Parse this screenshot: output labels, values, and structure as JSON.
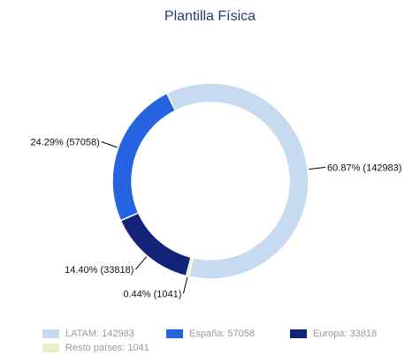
{
  "chart_data": {
    "type": "pie",
    "style": "donut",
    "title": "Plantilla Física",
    "slices": [
      {
        "name": "LATAM",
        "value": 142983,
        "percent": 60.87,
        "label": "60.87% (142983)",
        "legend": "LATAM: 142983",
        "color": "#c6dbf0"
      },
      {
        "name": "España",
        "value": 57058,
        "percent": 24.29,
        "label": "24.29% (57058)",
        "legend": "España: 57058",
        "color": "#2563e0"
      },
      {
        "name": "Europa",
        "value": 33818,
        "percent": 14.4,
        "label": "14.40% (33818)",
        "legend": "Europa: 33818",
        "color": "#13237a"
      },
      {
        "name": "Resto países",
        "value": 1041,
        "percent": 0.44,
        "label": "0.44% (1041)",
        "legend": "Resto países: 1041",
        "color": "#e9f0c8"
      }
    ],
    "legend_position": "bottom"
  }
}
